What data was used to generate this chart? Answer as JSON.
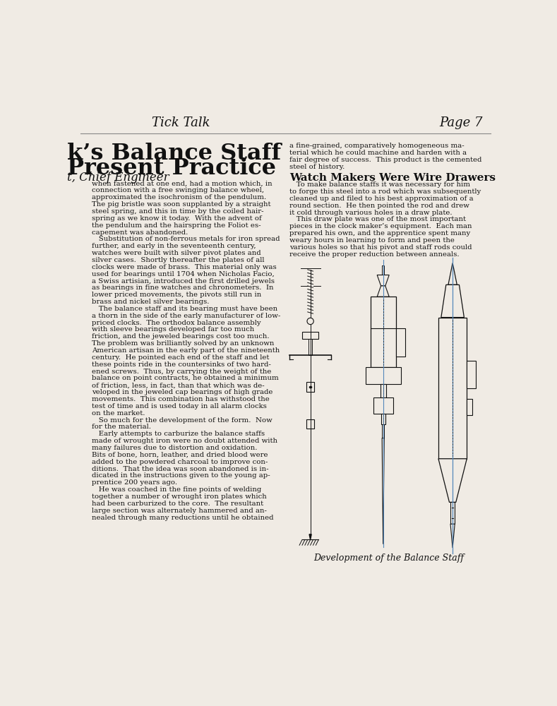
{
  "bg_color": "#f0ebe4",
  "page_title_left": "Tick Talk",
  "page_title_right": "Page 7",
  "title_line1": "k’s Balance Staff",
  "title_line2": "Present Practice",
  "subtitle": "t, Chief Engineer",
  "left_col_text": [
    "when fastened at one end, had a motion which, in",
    "connection with a free swinging balance wheel,",
    "approximated the isochronism of the pendulum.",
    "The pig bristle was soon supplanted by a straight",
    "steel spring, and this in time by the coiled hair-",
    "spring as we know it today.  With the advent of",
    "the pendulum and the hairspring the Foliot es-",
    "capement was abandoned.",
    "   Substitution of non-ferrous metals for iron spread",
    "further, and early in the seventeenth century,",
    "watches were built with silver pivot plates and",
    "silver cases.  Shortly thereafter the plates of all",
    "clocks were made of brass.  This material only was",
    "used for bearings until 1704 when Nicholas Facio,",
    "a Swiss artisian, introduced the first drilled jewels",
    "as bearings in fine watches and chronometers.  In",
    "lower priced movements, the pivots still run in",
    "brass and nickel silver bearings.",
    "   The balance staff and its bearing must have been",
    "a thorn in the side of the early manufacturer of low-",
    "priced clocks.  The orthodox balance assembly",
    "with sleeve bearings developed far too much",
    "friction, and the jeweled bearings cost too much.",
    "The problem was brilliantly solved by an unknown",
    "American artisan in the early part of the nineteenth",
    "century.  He pointed each end of the staff and let",
    "these points ride in the countersinks of two hard-",
    "ened screws.  Thus, by carrying the weight of the",
    "balance on point contracts, he obtained a minimum",
    "of friction, less, in fact, than that which was de-",
    "veloped in the jeweled cap bearings of high grade",
    "movements.  This combination has withstood the",
    "test of time and is used today in all alarm clocks",
    "on the market.",
    "   So much for the development of the form.  Now",
    "for the material.",
    "   Early attempts to carburize the balance staffs",
    "made of wrought iron were no doubt attended with",
    "many failures due to distortion and oxidation.",
    "Bits of bone, horn, leather, and dried blood were",
    "added to the powdered charcoal to improve con-",
    "ditions.  That the idea was soon abandoned is in-",
    "dicated in the instructions given to the young ap-",
    "prentice 200 years ago.",
    "   He was coached in the fine points of welding",
    "together a number of wrought iron plates which",
    "had been carburized to the core.  The resultant",
    "large section was alternately hammered and an-",
    "nealed through many reductions until he obtained"
  ],
  "right_col_text_top": [
    "a fine-grained, comparatively homogeneous ma-",
    "terial which he could machine and harden with a",
    "fair degree of success.  This product is the cemented",
    "steel of history."
  ],
  "watch_makers_title": "Watch Makers Were Wire Drawers",
  "right_col_text_mid": [
    "   To make balance staffs it was necessary for him",
    "to forge this steel into a rod which was subsequently",
    "cleaned up and filed to his best approximation of a",
    "round section.  He then pointed the rod and drew",
    "it cold through various holes in a draw plate.",
    "   This draw plate was one of the most important",
    "pieces in the clock maker’s equipment.  Each man",
    "prepared his own, and the apprentice spent many",
    "weary hours in learning to form and peen the",
    "various holes so that his pivot and staff rods could",
    "receive the proper reduction between anneals."
  ],
  "caption": "Development of the Balance Staff",
  "text_color": "#111111",
  "line_color": "#222222",
  "draw_color": "#111111"
}
